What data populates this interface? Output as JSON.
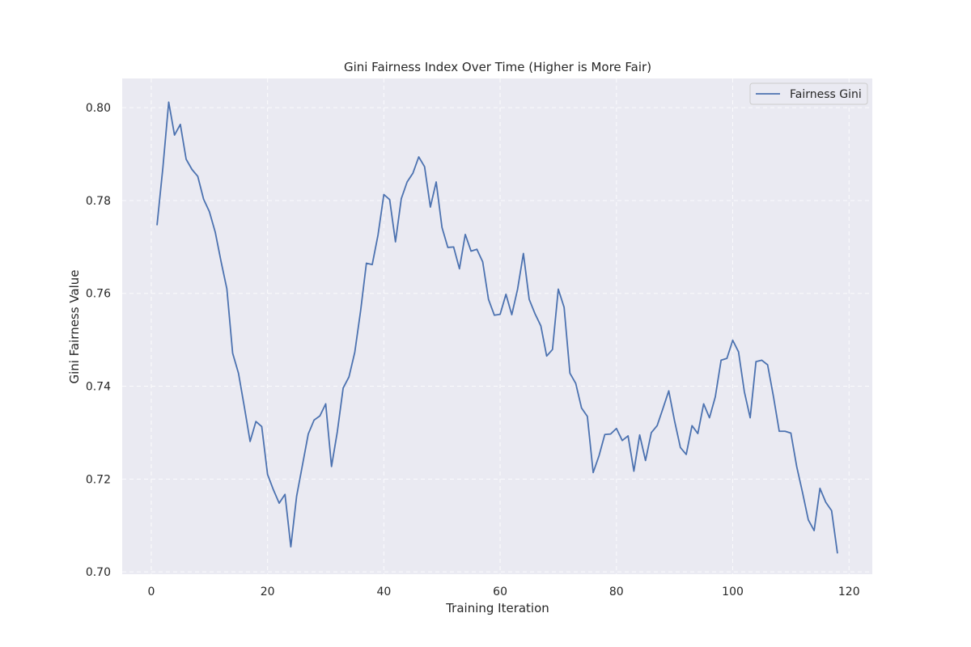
{
  "chart_data": {
    "type": "line",
    "title": "Gini Fairness Index Over Time (Higher is More Fair)",
    "xlabel": "Training Iteration",
    "ylabel": "Gini Fairness Value",
    "xlim": [
      -5,
      124
    ],
    "ylim": [
      0.6995,
      0.8063
    ],
    "xticks": [
      0,
      20,
      40,
      60,
      80,
      100,
      120
    ],
    "yticks": [
      0.7,
      0.72,
      0.74,
      0.76,
      0.78,
      0.8
    ],
    "xtick_labels": [
      "0",
      "20",
      "40",
      "60",
      "80",
      "100",
      "120"
    ],
    "ytick_labels": [
      "0.70",
      "0.72",
      "0.74",
      "0.76",
      "0.78",
      "0.80"
    ],
    "grid": true,
    "legend_position": "top-right",
    "background": "#eaeaf2",
    "series": [
      {
        "name": "Fairness Gini",
        "color": "#4c72b0",
        "x_start": 1,
        "x_step": 1,
        "values": [
          0.7748,
          0.7871,
          0.8012,
          0.7941,
          0.7964,
          0.7889,
          0.7867,
          0.7852,
          0.7803,
          0.7776,
          0.7732,
          0.7669,
          0.761,
          0.7471,
          0.7428,
          0.7356,
          0.7281,
          0.7324,
          0.7313,
          0.721,
          0.7177,
          0.7148,
          0.7167,
          0.7054,
          0.7163,
          0.723,
          0.7297,
          0.7327,
          0.7336,
          0.7362,
          0.7227,
          0.7302,
          0.7396,
          0.742,
          0.7473,
          0.7562,
          0.7665,
          0.7662,
          0.7726,
          0.7813,
          0.7802,
          0.7711,
          0.7804,
          0.784,
          0.7859,
          0.7894,
          0.7873,
          0.7786,
          0.784,
          0.7742,
          0.7699,
          0.77,
          0.7653,
          0.7727,
          0.7691,
          0.7695,
          0.7668,
          0.7587,
          0.7553,
          0.7555,
          0.7598,
          0.7554,
          0.7609,
          0.7686,
          0.7587,
          0.7556,
          0.753,
          0.7465,
          0.7479,
          0.7609,
          0.757,
          0.7428,
          0.7406,
          0.7353,
          0.7335,
          0.7214,
          0.725,
          0.7296,
          0.7297,
          0.7309,
          0.7283,
          0.7293,
          0.7217,
          0.7295,
          0.724,
          0.73,
          0.7315,
          0.7352,
          0.739,
          0.7325,
          0.7268,
          0.7253,
          0.7315,
          0.7298,
          0.7362,
          0.7332,
          0.7377,
          0.7456,
          0.746,
          0.7499,
          0.7474,
          0.7388,
          0.7332,
          0.7453,
          0.7456,
          0.7446,
          0.7378,
          0.7303,
          0.7303,
          0.7299,
          0.7227,
          0.7171,
          0.7112,
          0.7089,
          0.718,
          0.715,
          0.7132,
          0.7041
        ]
      }
    ]
  }
}
